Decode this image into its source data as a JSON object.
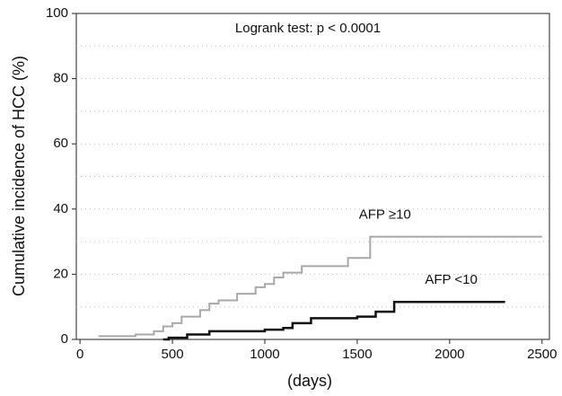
{
  "chart_data": {
    "type": "step",
    "annotation": "Logrank test: p < 0.0001",
    "xlabel": "(days)",
    "ylabel": "Cumulative incidence of HCC (%)",
    "xlim": [
      -20,
      2540
    ],
    "ylim": [
      0,
      100
    ],
    "xticks": [
      0,
      500,
      1000,
      1500,
      2000,
      2500
    ],
    "yticks": [
      0,
      20,
      40,
      60,
      80,
      100
    ],
    "ygrid": [
      10,
      20,
      30,
      40,
      50,
      60,
      70,
      80,
      90
    ],
    "series": [
      {
        "name": "AFP ≥10",
        "color": "#a8a8a8",
        "x": [
          100,
          300,
          400,
          450,
          500,
          550,
          650,
          700,
          750,
          850,
          950,
          1000,
          1050,
          1100,
          1200,
          1450,
          1570,
          2500
        ],
        "values": [
          1,
          1.5,
          2.5,
          4,
          5,
          7,
          9,
          11,
          12,
          14,
          16,
          17,
          19,
          20.5,
          22.5,
          25,
          31.5,
          31.5
        ]
      },
      {
        "name": "AFP <10",
        "color": "#111111",
        "x": [
          450,
          480,
          580,
          700,
          1000,
          1100,
          1150,
          1250,
          1500,
          1600,
          1700,
          2300
        ],
        "values": [
          0,
          0.5,
          1.5,
          2.5,
          3,
          3.5,
          5,
          6.5,
          7,
          8.5,
          11.5,
          11.5
        ]
      }
    ]
  }
}
